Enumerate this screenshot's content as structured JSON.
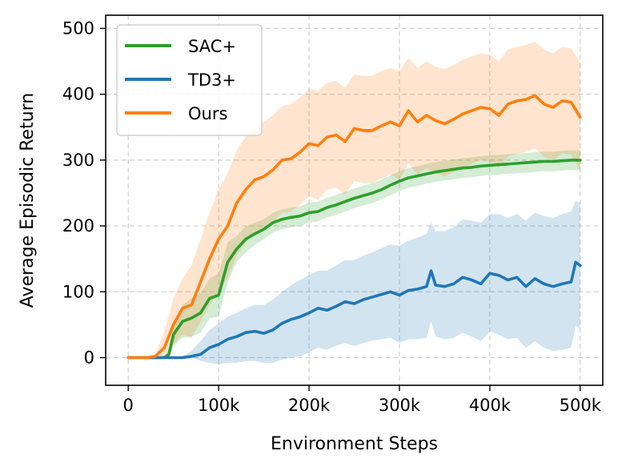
{
  "chart_data": {
    "type": "line",
    "title": "",
    "xlabel": "Environment Steps",
    "ylabel": "Average Episodic Return",
    "xlim": [
      -25000,
      525000
    ],
    "ylim": [
      -42,
      520
    ],
    "xticks": [
      0,
      100000,
      200000,
      300000,
      400000,
      500000
    ],
    "xtick_labels": [
      "0",
      "100k",
      "200k",
      "300k",
      "400k",
      "500k"
    ],
    "yticks": [
      0,
      100,
      200,
      300,
      400,
      500
    ],
    "ytick_labels": [
      "0",
      "100",
      "200",
      "300",
      "400",
      "500"
    ],
    "grid": true,
    "legend_position": "top-left",
    "series": [
      {
        "name": "SAC+",
        "color": "#2ca02c",
        "x": [
          0,
          20000,
          40000,
          45000,
          50000,
          60000,
          70000,
          80000,
          90000,
          100000,
          110000,
          120000,
          130000,
          140000,
          150000,
          160000,
          170000,
          180000,
          190000,
          200000,
          210000,
          220000,
          230000,
          240000,
          250000,
          260000,
          270000,
          280000,
          290000,
          300000,
          310000,
          320000,
          330000,
          340000,
          350000,
          360000,
          370000,
          380000,
          390000,
          400000,
          410000,
          420000,
          430000,
          440000,
          450000,
          460000,
          470000,
          480000,
          490000,
          500000
        ],
        "values": [
          0,
          0,
          0,
          5,
          35,
          55,
          60,
          68,
          90,
          95,
          145,
          165,
          180,
          188,
          195,
          205,
          210,
          213,
          215,
          220,
          222,
          228,
          232,
          237,
          242,
          246,
          250,
          255,
          262,
          268,
          273,
          276,
          279,
          282,
          284,
          286,
          288,
          289,
          291,
          292,
          293,
          294,
          295,
          296,
          297,
          298,
          298,
          299,
          300,
          300
        ],
        "upper": [
          0,
          0,
          3,
          12,
          52,
          80,
          90,
          98,
          120,
          128,
          175,
          185,
          200,
          205,
          210,
          220,
          225,
          228,
          230,
          235,
          237,
          243,
          247,
          252,
          257,
          261,
          265,
          270,
          277,
          283,
          288,
          291,
          294,
          297,
          299,
          301,
          303,
          304,
          306,
          307,
          308,
          309,
          310,
          311,
          312,
          313,
          313,
          314,
          315,
          315
        ],
        "lower": [
          0,
          0,
          0,
          0,
          18,
          30,
          32,
          38,
          60,
          62,
          115,
          145,
          160,
          171,
          180,
          190,
          195,
          198,
          200,
          205,
          207,
          213,
          217,
          222,
          227,
          231,
          235,
          240,
          247,
          253,
          258,
          261,
          264,
          267,
          269,
          271,
          273,
          274,
          276,
          277,
          278,
          279,
          280,
          281,
          282,
          283,
          283,
          284,
          285,
          285
        ]
      },
      {
        "name": "TD3+",
        "color": "#1f77b4",
        "x": [
          0,
          20000,
          40000,
          60000,
          70000,
          80000,
          90000,
          100000,
          110000,
          120000,
          130000,
          140000,
          150000,
          160000,
          170000,
          180000,
          190000,
          200000,
          210000,
          220000,
          230000,
          240000,
          250000,
          260000,
          270000,
          280000,
          290000,
          300000,
          310000,
          320000,
          330000,
          335000,
          340000,
          350000,
          360000,
          370000,
          380000,
          390000,
          400000,
          410000,
          420000,
          430000,
          440000,
          450000,
          460000,
          470000,
          480000,
          490000,
          495000,
          500000
        ],
        "values": [
          0,
          0,
          0,
          0,
          2,
          5,
          15,
          20,
          28,
          32,
          38,
          40,
          37,
          42,
          52,
          58,
          62,
          68,
          75,
          72,
          78,
          85,
          82,
          88,
          92,
          96,
          100,
          95,
          102,
          104,
          108,
          132,
          110,
          108,
          112,
          122,
          118,
          112,
          128,
          125,
          118,
          122,
          108,
          120,
          112,
          108,
          112,
          115,
          145,
          140
        ],
        "upper": [
          0,
          0,
          0,
          2,
          10,
          25,
          42,
          52,
          62,
          68,
          75,
          80,
          80,
          88,
          100,
          110,
          118,
          125,
          132,
          132,
          140,
          148,
          148,
          155,
          160,
          166,
          172,
          170,
          178,
          182,
          188,
          205,
          192,
          192,
          198,
          210,
          208,
          205,
          218,
          218,
          212,
          218,
          208,
          220,
          215,
          212,
          218,
          222,
          238,
          235
        ],
        "lower": [
          0,
          0,
          0,
          0,
          0,
          -5,
          -8,
          -10,
          -8,
          -8,
          -5,
          -5,
          -8,
          -8,
          -3,
          0,
          2,
          8,
          15,
          12,
          18,
          22,
          18,
          22,
          26,
          28,
          30,
          22,
          28,
          28,
          30,
          55,
          32,
          28,
          30,
          38,
          32,
          25,
          40,
          35,
          28,
          30,
          15,
          25,
          15,
          10,
          12,
          15,
          48,
          45
        ]
      },
      {
        "name": "Ours",
        "color": "#ff7f0e",
        "x": [
          0,
          20000,
          30000,
          40000,
          50000,
          60000,
          70000,
          80000,
          90000,
          100000,
          110000,
          120000,
          130000,
          140000,
          150000,
          160000,
          170000,
          180000,
          190000,
          200000,
          210000,
          220000,
          230000,
          240000,
          250000,
          260000,
          270000,
          280000,
          290000,
          300000,
          310000,
          320000,
          330000,
          340000,
          350000,
          360000,
          370000,
          380000,
          390000,
          400000,
          410000,
          420000,
          430000,
          440000,
          450000,
          460000,
          470000,
          480000,
          490000,
          500000
        ],
        "values": [
          0,
          0,
          2,
          15,
          50,
          75,
          80,
          115,
          150,
          180,
          200,
          235,
          255,
          270,
          275,
          285,
          300,
          302,
          312,
          325,
          322,
          335,
          338,
          328,
          348,
          345,
          345,
          352,
          358,
          352,
          375,
          358,
          368,
          360,
          355,
          362,
          370,
          375,
          380,
          378,
          368,
          385,
          390,
          392,
          398,
          385,
          380,
          390,
          388,
          365
        ],
        "upper": [
          0,
          0,
          5,
          40,
          90,
          120,
          140,
          180,
          220,
          255,
          280,
          315,
          335,
          352,
          358,
          368,
          382,
          385,
          395,
          408,
          405,
          418,
          420,
          410,
          430,
          428,
          428,
          435,
          440,
          435,
          455,
          440,
          450,
          442,
          438,
          445,
          452,
          458,
          462,
          460,
          450,
          468,
          472,
          475,
          480,
          468,
          462,
          472,
          470,
          448
        ],
        "lower": [
          0,
          0,
          0,
          0,
          20,
          35,
          30,
          55,
          80,
          100,
          120,
          155,
          175,
          190,
          195,
          205,
          220,
          222,
          232,
          245,
          240,
          255,
          258,
          248,
          268,
          265,
          265,
          272,
          278,
          270,
          295,
          278,
          288,
          280,
          275,
          282,
          288,
          295,
          300,
          298,
          288,
          305,
          310,
          312,
          318,
          305,
          300,
          310,
          308,
          285
        ]
      }
    ]
  }
}
